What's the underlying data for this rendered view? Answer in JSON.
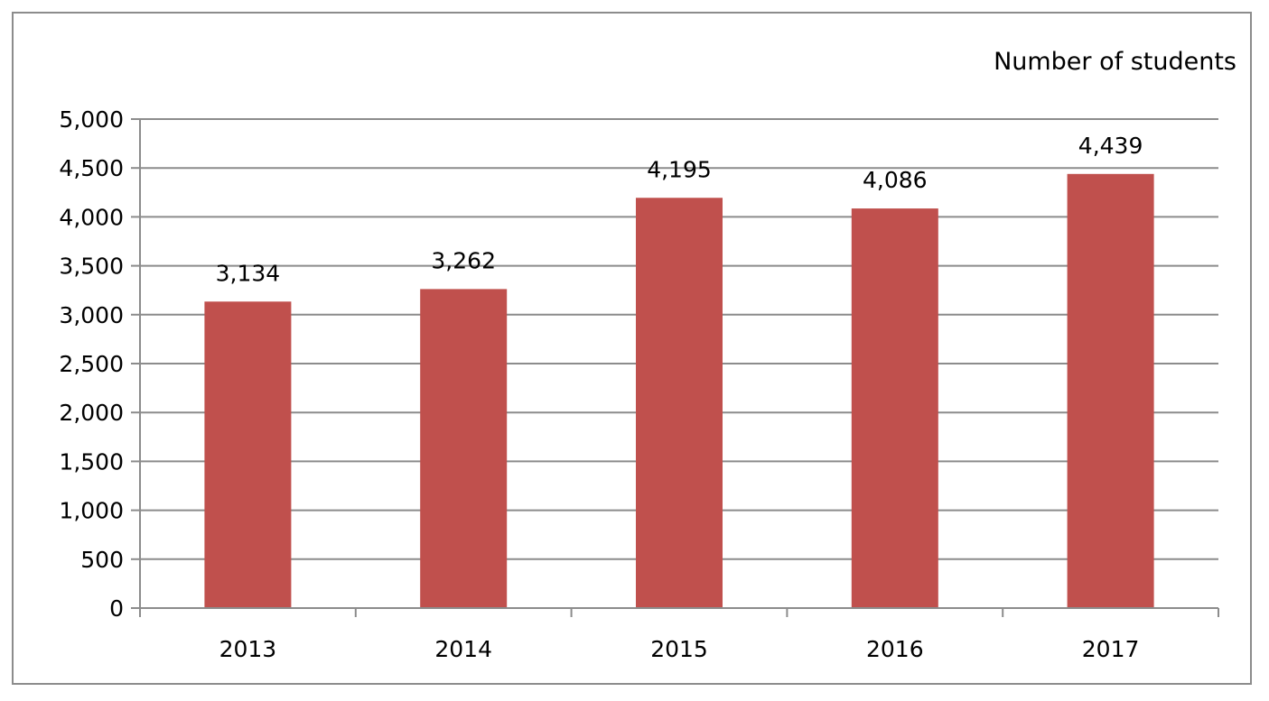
{
  "chart_data": {
    "type": "bar",
    "categories": [
      "2013",
      "2014",
      "2015",
      "2016",
      "2017"
    ],
    "values": [
      3134,
      3262,
      4195,
      4086,
      4439
    ],
    "value_labels": [
      "3,134",
      "3,262",
      "4,195",
      "4,086",
      "4,439"
    ],
    "title": "",
    "ylabel": "Number of students",
    "xlabel": "",
    "ylim": [
      0,
      5000
    ],
    "yticks": [
      0,
      500,
      1000,
      1500,
      2000,
      2500,
      3000,
      3500,
      4000,
      4500,
      5000
    ],
    "ytick_labels": [
      "0",
      "500",
      "1,000",
      "1,500",
      "2,000",
      "2,500",
      "3,000",
      "3,500",
      "4,000",
      "4,500",
      "5,000"
    ],
    "grid": true,
    "legend": "none",
    "colors": {
      "bar": "#c0504d",
      "grid": "#8c8c8c",
      "axis": "#8c8c8c",
      "border": "#8c8c8c"
    }
  }
}
